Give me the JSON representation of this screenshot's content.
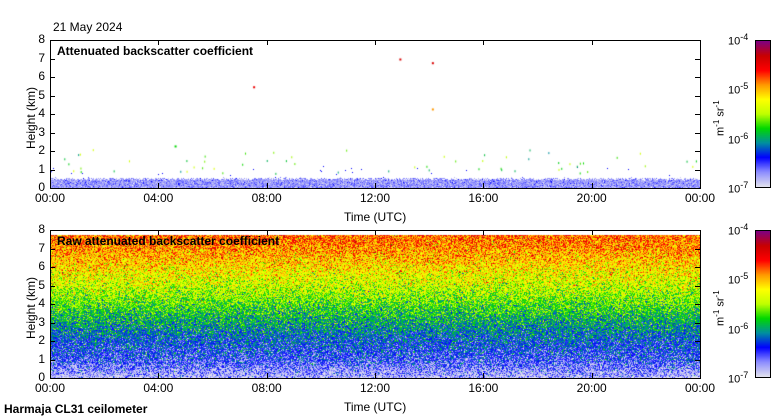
{
  "date": "21 May 2024",
  "footer": "Harmaja CL31 ceilometer",
  "chart_data": [
    {
      "type": "heatmap",
      "title": "Attenuated backscatter coefficient",
      "xlabel": "Time (UTC)",
      "ylabel": "Height (km)",
      "x_ticks": [
        "00:00",
        "04:00",
        "08:00",
        "12:00",
        "16:00",
        "20:00",
        "00:00"
      ],
      "y_ticks": [
        "0",
        "1",
        "2",
        "3",
        "4",
        "5",
        "6",
        "7",
        "8"
      ],
      "ylim": [
        0,
        8
      ],
      "xlim_hours": [
        0,
        24
      ],
      "colorbar": {
        "label_base": "m",
        "label_exp1": "-1",
        "label_sr": " sr",
        "label_exp2": "-1",
        "ticks": [
          {
            "base": "10",
            "exp": "-7"
          },
          {
            "base": "10",
            "exp": "-6"
          },
          {
            "base": "10",
            "exp": "-5"
          },
          {
            "base": "10",
            "exp": "-4"
          }
        ],
        "log_range": [
          -7,
          -4
        ]
      },
      "description_profile": {
        "heights_km": [
          0,
          0.25,
          0.5,
          0.75,
          1
        ],
        "log10_backscatter": [
          -6.6,
          -6.6,
          -6.7,
          -9,
          -9
        ]
      },
      "sparse_points": [
        {
          "t_h": 4.6,
          "h_km": 2.3,
          "log10": -5.8
        },
        {
          "t_h": 7.5,
          "h_km": 5.5,
          "log10": -4.5
        },
        {
          "t_h": 12.9,
          "h_km": 7.0,
          "log10": -4.4
        },
        {
          "t_h": 14.1,
          "h_km": 6.8,
          "log10": -4.4
        },
        {
          "t_h": 14.1,
          "h_km": 4.3,
          "log10": -4.9
        }
      ]
    },
    {
      "type": "heatmap",
      "title": "Raw attenuated backscatter coefficient",
      "xlabel": "Time (UTC)",
      "ylabel": "Height (km)",
      "x_ticks": [
        "00:00",
        "04:00",
        "08:00",
        "12:00",
        "16:00",
        "20:00",
        "00:00"
      ],
      "y_ticks": [
        "0",
        "1",
        "2",
        "3",
        "4",
        "5",
        "6",
        "7",
        "8"
      ],
      "ylim": [
        0,
        8
      ],
      "xlim_hours": [
        0,
        24
      ],
      "colorbar": {
        "label_base": "m",
        "label_exp1": "-1",
        "label_sr": " sr",
        "label_exp2": "-1",
        "ticks": [
          {
            "base": "10",
            "exp": "-7"
          },
          {
            "base": "10",
            "exp": "-6"
          },
          {
            "base": "10",
            "exp": "-5"
          },
          {
            "base": "10",
            "exp": "-4"
          }
        ],
        "log_range": [
          -7,
          -4
        ]
      },
      "description_profile": {
        "heights_km": [
          0,
          0.5,
          1,
          2,
          3,
          4,
          5,
          6,
          7,
          7.7
        ],
        "log10_backscatter": [
          -6.9,
          -6.7,
          -6.5,
          -6.3,
          -6.0,
          -5.7,
          -5.4,
          -5.15,
          -4.9,
          -4.8
        ]
      }
    }
  ],
  "colors": {
    "cmap": [
      "#e0e0ee",
      "#8c8cff",
      "#0000ff",
      "#0090a0",
      "#00d800",
      "#c0ff00",
      "#ffff00",
      "#ff9900",
      "#ff0000",
      "#c80000",
      "#800080"
    ]
  }
}
